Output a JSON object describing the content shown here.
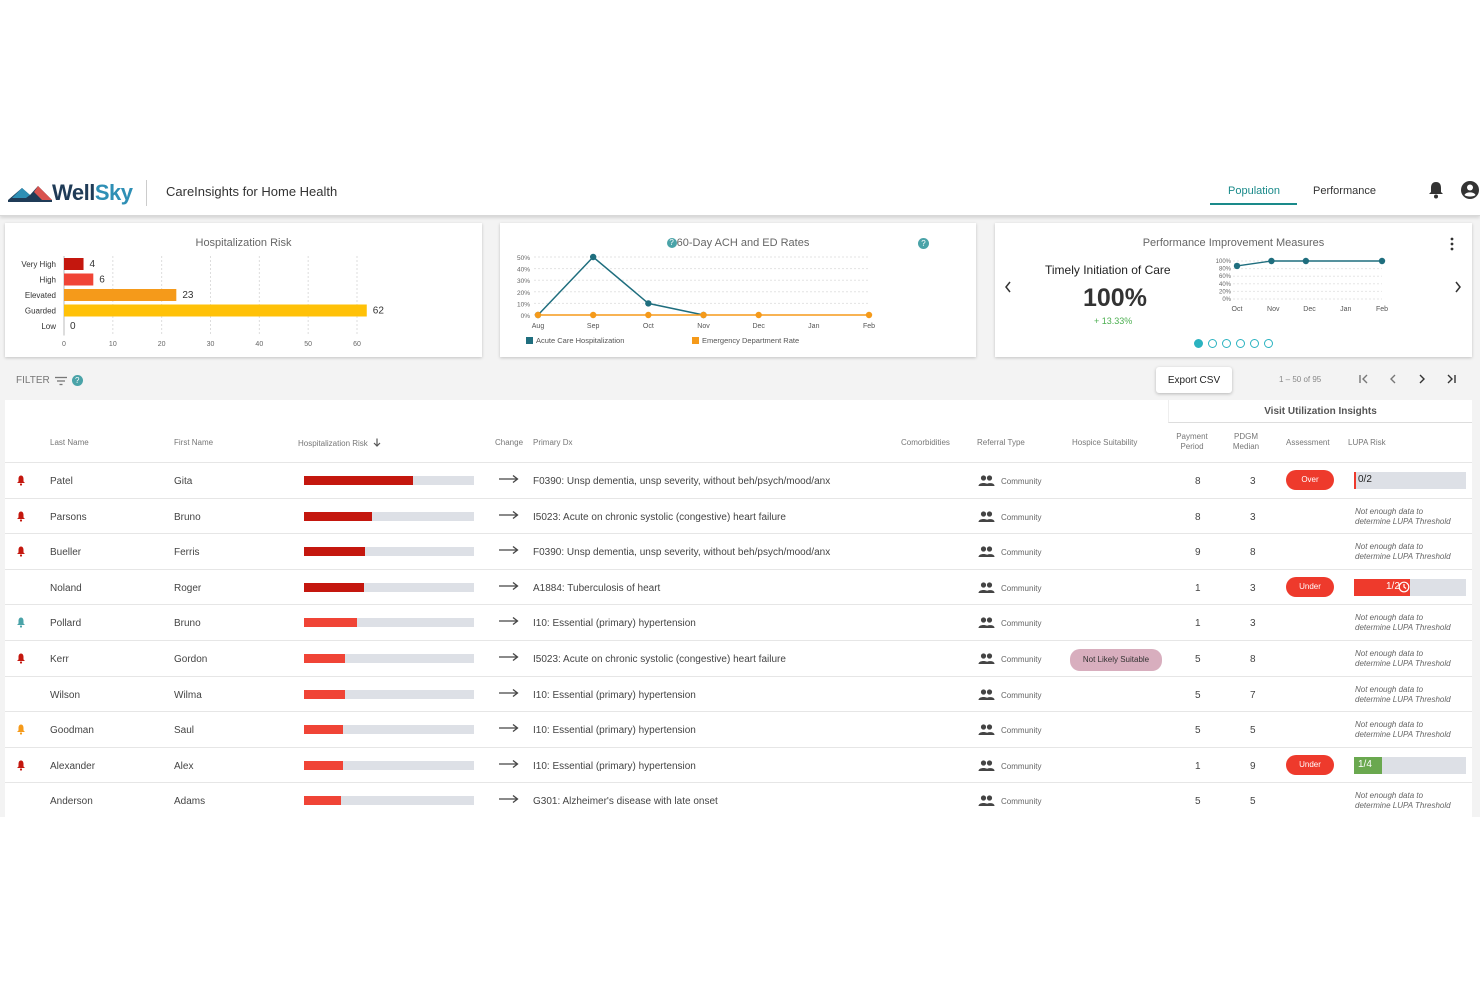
{
  "header": {
    "logo_w": "Well",
    "logo_s": "Sky",
    "app_title": "CareInsights for Home Health",
    "tabs": [
      {
        "label": "Population"
      },
      {
        "label": "Performance"
      }
    ]
  },
  "cards": {
    "hosp_risk": {
      "title": "Hospitalization Risk",
      "chart_data": {
        "type": "bar",
        "orientation": "horizontal",
        "categories": [
          "Very High",
          "High",
          "Elevated",
          "Guarded",
          "Low"
        ],
        "values": [
          4,
          6,
          23,
          62,
          0
        ],
        "colors": [
          "#c4170e",
          "#f04436",
          "#f59a1a",
          "#ffc107",
          "#ffc107"
        ],
        "xticks": [
          "0",
          "10",
          "20",
          "30",
          "40",
          "50",
          "60"
        ],
        "xlim": [
          0,
          60
        ]
      }
    },
    "ach": {
      "title": "60-Day ACH and ED Rates",
      "chart_data": {
        "type": "line",
        "categories": [
          "Aug",
          "Sep",
          "Oct",
          "Nov",
          "Dec",
          "Jan",
          "Feb"
        ],
        "yticks": [
          "50%",
          "40%",
          "30%",
          "20%",
          "10%",
          "0%"
        ],
        "ylim": [
          0,
          50
        ],
        "series": [
          {
            "name": "Acute Care Hospitalization",
            "color": "#1f6e7e",
            "values": [
              0,
              50,
              10,
              0,
              null,
              null,
              null
            ]
          },
          {
            "name": "Emergency Department Rate",
            "color": "#f59a1a",
            "values": [
              0,
              0,
              0,
              0,
              0,
              null,
              0
            ]
          }
        ]
      }
    },
    "pim": {
      "title": "Performance Improvement Measures",
      "measure": "Timely Initiation of Care",
      "value": "100%",
      "change": "+ 13.33%",
      "chart_data": {
        "type": "line",
        "categories": [
          "Oct",
          "Nov",
          "Dec",
          "Jan",
          "Feb"
        ],
        "yticks": [
          "100%",
          "80%",
          "60%",
          "40%",
          "20%",
          "0%"
        ],
        "ylim": [
          0,
          100
        ],
        "series": [
          {
            "color": "#1f6e7e",
            "values": [
              null,
              100,
              100,
              null,
              100
            ]
          }
        ],
        "first_point": 87
      },
      "dots": 6,
      "active_dot": 0
    }
  },
  "toolbar": {
    "filter_label": "FILTER",
    "export_label": "Export CSV",
    "page_info": "1 – 50 of 95"
  },
  "table": {
    "vui_title": "Visit Utilization Insights",
    "columns": {
      "last": "Last Name",
      "first": "First Name",
      "risk": "Hospitalization Risk",
      "change": "Change",
      "dx": "Primary Dx",
      "comorb": "Comorbidities",
      "referral": "Referral Type",
      "hospice": "Hospice Suitability",
      "payment_1": "Payment",
      "payment_2": "Period",
      "pdgm_1": "PDGM",
      "pdgm_2": "Median",
      "assessment": "Assessment",
      "lupa": "LUPA Risk"
    },
    "lupa_note_1": "Not enough data to",
    "lupa_note_2": "determine LUPA Threshold",
    "rows": [
      {
        "bell": "#c4170e",
        "last": "Patel",
        "first": "Gita",
        "risk": 0.64,
        "risk_color": "#c4170e",
        "dx": "F0390: Unsp dementia, unsp severity, without beh/psych/mood/anx",
        "referral": "Community",
        "hospice": "",
        "payment": "8",
        "pdgm": "3",
        "assessment": "Over",
        "lupa": {
          "text": "0/2",
          "fill": 0.02,
          "color": "#ee3a2c"
        }
      },
      {
        "bell": "#c4170e",
        "last": "Parsons",
        "first": "Bruno",
        "risk": 0.4,
        "risk_color": "#c4170e",
        "dx": "I5023: Acute on chronic systolic (congestive) heart failure",
        "referral": "Community",
        "hospice": "",
        "payment": "8",
        "pdgm": "3",
        "assessment": "",
        "lupa": null
      },
      {
        "bell": "#c4170e",
        "last": "Bueller",
        "first": "Ferris",
        "risk": 0.36,
        "risk_color": "#c4170e",
        "dx": "F0390: Unsp dementia, unsp severity, without beh/psych/mood/anx",
        "referral": "Community",
        "hospice": "",
        "payment": "9",
        "pdgm": "8",
        "assessment": "",
        "lupa": null
      },
      {
        "bell": "",
        "last": "Noland",
        "first": "Roger",
        "risk": 0.35,
        "risk_color": "#c4170e",
        "dx": "A1884: Tuberculosis of heart",
        "referral": "Community",
        "hospice": "",
        "payment": "1",
        "pdgm": "3",
        "assessment": "Under",
        "lupa": {
          "text": "1/2",
          "fill": 0.5,
          "color": "#ee3a2c",
          "clock": true
        }
      },
      {
        "bell": "#4aa3a8",
        "last": "Pollard",
        "first": "Bruno",
        "risk": 0.31,
        "risk_color": "#f04436",
        "dx": "I10: Essential (primary) hypertension",
        "referral": "Community",
        "hospice": "",
        "payment": "1",
        "pdgm": "3",
        "assessment": "",
        "lupa": null
      },
      {
        "bell": "#c4170e",
        "last": "Kerr",
        "first": "Gordon",
        "risk": 0.24,
        "risk_color": "#f04436",
        "dx": "I5023: Acute on chronic systolic (congestive) heart failure",
        "referral": "Community",
        "hospice": "Not Likely Suitable",
        "payment": "5",
        "pdgm": "8",
        "assessment": "",
        "lupa": null
      },
      {
        "bell": "",
        "last": "Wilson",
        "first": "Wilma",
        "risk": 0.24,
        "risk_color": "#f04436",
        "dx": "I10: Essential (primary) hypertension",
        "referral": "Community",
        "hospice": "",
        "payment": "5",
        "pdgm": "7",
        "assessment": "",
        "lupa": null
      },
      {
        "bell": "#f59a1a",
        "last": "Goodman",
        "first": "Saul",
        "risk": 0.23,
        "risk_color": "#f04436",
        "dx": "I10: Essential (primary) hypertension",
        "referral": "Community",
        "hospice": "",
        "payment": "5",
        "pdgm": "5",
        "assessment": "",
        "lupa": null
      },
      {
        "bell": "#c4170e",
        "last": "Alexander",
        "first": "Alex",
        "risk": 0.23,
        "risk_color": "#f04436",
        "dx": "I10: Essential (primary) hypertension",
        "referral": "Community",
        "hospice": "",
        "payment": "1",
        "pdgm": "9",
        "assessment": "Under",
        "lupa": {
          "text": "1/4",
          "fill": 0.25,
          "color": "#6aa84f"
        }
      },
      {
        "bell": "",
        "last": "Anderson",
        "first": "Adams",
        "risk": 0.22,
        "risk_color": "#f04436",
        "dx": "G301: Alzheimer's disease with late onset",
        "referral": "Community",
        "hospice": "",
        "payment": "5",
        "pdgm": "5",
        "assessment": "",
        "lupa": null
      }
    ]
  }
}
